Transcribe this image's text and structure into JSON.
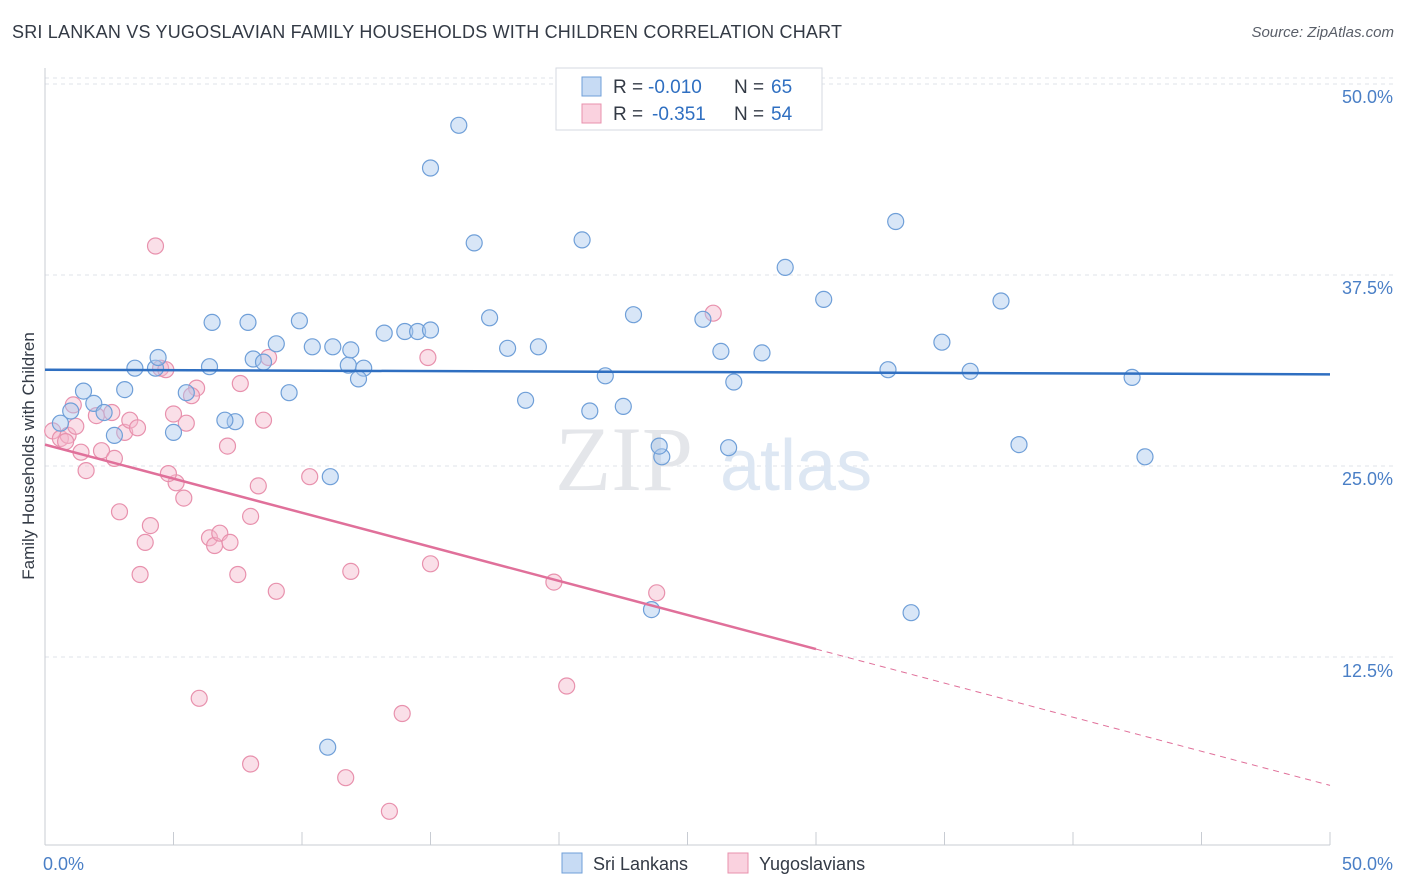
{
  "title": "SRI LANKAN VS YUGOSLAVIAN FAMILY HOUSEHOLDS WITH CHILDREN CORRELATION CHART",
  "source": "Source: ZipAtlas.com",
  "watermark": {
    "zip": "ZIP",
    "atlas": "atlas"
  },
  "colors": {
    "blue_fill": "#a9c8ee",
    "blue_stroke": "#6f9fd8",
    "blue_line": "#2f6fc1",
    "pink_fill": "#f5b8cb",
    "pink_stroke": "#e891ad",
    "pink_line": "#e0709a",
    "grid": "#dfe3ea",
    "tick_text": "#4a7fc6"
  },
  "legend": {
    "rows": [
      {
        "r_label": "R =",
        "r_value": "-0.010",
        "n_label": "N =",
        "n_value": "65"
      },
      {
        "r_label": "R =",
        "r_value": "-0.351",
        "n_label": "N =",
        "n_value": "54"
      }
    ]
  },
  "chart_data": {
    "type": "scatter",
    "xlabel": "",
    "ylabel": "Family Households with Children",
    "xlim": [
      0,
      50
    ],
    "ylim": [
      0,
      52
    ],
    "x_tick_labels": [
      "0.0%",
      "50.0%"
    ],
    "y_tick_labels": [
      "12.5%",
      "25.0%",
      "37.5%",
      "50.0%"
    ],
    "y_ticks": [
      12.5,
      25.0,
      37.5,
      50.0
    ],
    "legend_position": "top-center",
    "series": [
      {
        "name": "Sri Lankans",
        "color": "blue",
        "r": -0.01,
        "n": 65,
        "trend": {
          "x0": 0,
          "y0": 31.3,
          "x1": 50,
          "y1": 31.0,
          "dashed_from": null
        },
        "points": [
          [
            0.6,
            27.8
          ],
          [
            1.0,
            28.6
          ],
          [
            1.9,
            29.1
          ],
          [
            1.5,
            29.9
          ],
          [
            3.1,
            30.0
          ],
          [
            4.3,
            31.4
          ],
          [
            3.5,
            31.4
          ],
          [
            4.4,
            32.1
          ],
          [
            2.3,
            28.5
          ],
          [
            2.7,
            27.0
          ],
          [
            5.5,
            29.8
          ],
          [
            6.4,
            31.5
          ],
          [
            6.5,
            34.4
          ],
          [
            7.4,
            27.9
          ],
          [
            7.9,
            34.4
          ],
          [
            8.1,
            32.0
          ],
          [
            8.5,
            31.8
          ],
          [
            9.5,
            29.8
          ],
          [
            9.9,
            34.5
          ],
          [
            10.4,
            32.8
          ],
          [
            11.2,
            32.8
          ],
          [
            11.8,
            31.6
          ],
          [
            11.9,
            32.6
          ],
          [
            12.4,
            31.4
          ],
          [
            13.2,
            33.7
          ],
          [
            14.0,
            33.8
          ],
          [
            14.5,
            33.8
          ],
          [
            15.0,
            33.9
          ],
          [
            15.0,
            44.5
          ],
          [
            11.1,
            24.3
          ],
          [
            16.1,
            47.3
          ],
          [
            16.7,
            39.6
          ],
          [
            17.3,
            34.7
          ],
          [
            18.0,
            32.7
          ],
          [
            18.7,
            29.3
          ],
          [
            19.2,
            32.8
          ],
          [
            20.9,
            39.8
          ],
          [
            21.2,
            28.6
          ],
          [
            21.8,
            30.9
          ],
          [
            22.5,
            28.9
          ],
          [
            22.9,
            34.9
          ],
          [
            24.0,
            25.6
          ],
          [
            23.6,
            15.6
          ],
          [
            23.9,
            26.3
          ],
          [
            25.6,
            34.6
          ],
          [
            26.3,
            32.5
          ],
          [
            26.6,
            26.2
          ],
          [
            26.8,
            30.5
          ],
          [
            27.9,
            32.4
          ],
          [
            28.8,
            38.0
          ],
          [
            30.3,
            35.9
          ],
          [
            32.8,
            31.3
          ],
          [
            33.1,
            41.0
          ],
          [
            33.7,
            15.4
          ],
          [
            34.9,
            33.1
          ],
          [
            36.0,
            31.2
          ],
          [
            37.2,
            35.8
          ],
          [
            37.9,
            26.4
          ],
          [
            42.3,
            30.8
          ],
          [
            42.8,
            25.6
          ],
          [
            11.0,
            6.6
          ],
          [
            5.0,
            27.2
          ],
          [
            12.2,
            30.7
          ],
          [
            7.0,
            28.0
          ],
          [
            9.0,
            33.0
          ]
        ]
      },
      {
        "name": "Yugoslavians",
        "color": "pink",
        "r": -0.351,
        "n": 54,
        "trend": {
          "x0": 0,
          "y0": 26.4,
          "x1": 50,
          "y1": 4.1,
          "dashed_from": 30
        },
        "points": [
          [
            0.3,
            27.3
          ],
          [
            0.6,
            26.8
          ],
          [
            0.9,
            27.0
          ],
          [
            1.2,
            27.6
          ],
          [
            1.6,
            24.7
          ],
          [
            2.0,
            28.3
          ],
          [
            2.2,
            26.0
          ],
          [
            2.6,
            28.5
          ],
          [
            2.7,
            25.5
          ],
          [
            3.1,
            27.2
          ],
          [
            3.3,
            28.0
          ],
          [
            3.6,
            27.5
          ],
          [
            3.7,
            17.9
          ],
          [
            3.9,
            20.0
          ],
          [
            4.1,
            21.1
          ],
          [
            4.3,
            39.4
          ],
          [
            4.5,
            31.4
          ],
          [
            4.7,
            31.3
          ],
          [
            5.0,
            28.4
          ],
          [
            5.1,
            23.9
          ],
          [
            5.4,
            22.9
          ],
          [
            5.5,
            27.8
          ],
          [
            5.9,
            30.1
          ],
          [
            6.0,
            9.8
          ],
          [
            6.4,
            20.3
          ],
          [
            6.6,
            19.8
          ],
          [
            6.8,
            20.6
          ],
          [
            7.1,
            26.3
          ],
          [
            7.2,
            20.0
          ],
          [
            7.5,
            17.9
          ],
          [
            7.6,
            30.4
          ],
          [
            8.0,
            21.7
          ],
          [
            8.3,
            23.7
          ],
          [
            8.5,
            28.0
          ],
          [
            8.7,
            32.1
          ],
          [
            8.0,
            5.5
          ],
          [
            9.0,
            16.8
          ],
          [
            10.3,
            24.3
          ],
          [
            11.7,
            4.6
          ],
          [
            11.9,
            18.1
          ],
          [
            13.4,
            2.4
          ],
          [
            13.9,
            8.8
          ],
          [
            14.9,
            32.1
          ],
          [
            15.0,
            18.6
          ],
          [
            19.8,
            17.4
          ],
          [
            20.3,
            10.6
          ],
          [
            23.8,
            16.7
          ],
          [
            26.0,
            35.0
          ],
          [
            0.8,
            26.6
          ],
          [
            1.4,
            25.9
          ],
          [
            2.9,
            22.0
          ],
          [
            4.8,
            24.5
          ],
          [
            5.7,
            29.6
          ],
          [
            1.1,
            29.0
          ]
        ]
      }
    ]
  }
}
